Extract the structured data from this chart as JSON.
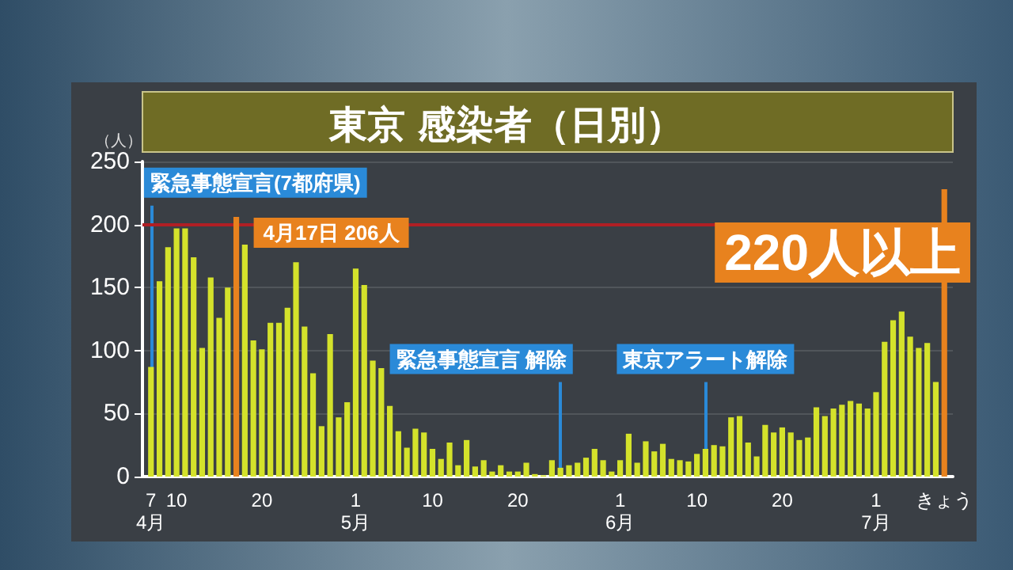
{
  "chart_data": {
    "type": "bar",
    "title": "東京 感染者（日別）",
    "ylabel": "（人）",
    "x": [
      "--04-07",
      "--04-08",
      "--04-09",
      "--04-10",
      "--04-11",
      "--04-12",
      "--04-13",
      "--04-14",
      "--04-15",
      "--04-16",
      "--04-17",
      "--04-18",
      "--04-19",
      "--04-20",
      "--04-21",
      "--04-22",
      "--04-23",
      "--04-24",
      "--04-25",
      "--04-26",
      "--04-27",
      "--04-28",
      "--04-29",
      "--04-30",
      "--05-01",
      "--05-02",
      "--05-03",
      "--05-04",
      "--05-05",
      "--05-06",
      "--05-07",
      "--05-08",
      "--05-09",
      "--05-10",
      "--05-11",
      "--05-12",
      "--05-13",
      "--05-14",
      "--05-15",
      "--05-16",
      "--05-17",
      "--05-18",
      "--05-19",
      "--05-20",
      "--05-21",
      "--05-22",
      "--05-23",
      "--05-24",
      "--05-25",
      "--05-26",
      "--05-27",
      "--05-28",
      "--05-29",
      "--05-30",
      "--05-31",
      "--06-01",
      "--06-02",
      "--06-03",
      "--06-04",
      "--06-05",
      "--06-06",
      "--06-07",
      "--06-08",
      "--06-09",
      "--06-10",
      "--06-11",
      "--06-12",
      "--06-13",
      "--06-14",
      "--06-15",
      "--06-16",
      "--06-17",
      "--06-18",
      "--06-19",
      "--06-20",
      "--06-21",
      "--06-22",
      "--06-23",
      "--06-24",
      "--06-25",
      "--06-26",
      "--06-27",
      "--06-28",
      "--06-29",
      "--06-30",
      "--07-01",
      "--07-02",
      "--07-03",
      "--07-04",
      "--07-05",
      "--07-06",
      "--07-07",
      "--07-08",
      "--07-09"
    ],
    "values": [
      87,
      155,
      182,
      197,
      197,
      174,
      102,
      158,
      126,
      150,
      206,
      184,
      108,
      101,
      122,
      122,
      134,
      170,
      119,
      82,
      40,
      113,
      47,
      59,
      165,
      152,
      92,
      86,
      56,
      36,
      23,
      38,
      35,
      22,
      14,
      27,
      9,
      29,
      8,
      13,
      4,
      9,
      4,
      4,
      11,
      2,
      1,
      13,
      7,
      9,
      11,
      15,
      22,
      13,
      4,
      13,
      34,
      11,
      28,
      20,
      26,
      14,
      13,
      12,
      18,
      22,
      25,
      24,
      47,
      48,
      27,
      16,
      41,
      35,
      39,
      35,
      29,
      31,
      55,
      48,
      54,
      57,
      60,
      58,
      54,
      67,
      107,
      124,
      131,
      111,
      102,
      106,
      75,
      228
    ],
    "colors": [
      "#d4e22b",
      "#d4e22b",
      "#d4e22b",
      "#d4e22b",
      "#d4e22b",
      "#d4e22b",
      "#d4e22b",
      "#d4e22b",
      "#d4e22b",
      "#d4e22b",
      "#e8821e",
      "#d4e22b",
      "#d4e22b",
      "#d4e22b",
      "#d4e22b",
      "#d4e22b",
      "#d4e22b",
      "#d4e22b",
      "#d4e22b",
      "#d4e22b",
      "#d4e22b",
      "#d4e22b",
      "#d4e22b",
      "#d4e22b",
      "#d4e22b",
      "#d4e22b",
      "#d4e22b",
      "#d4e22b",
      "#d4e22b",
      "#d4e22b",
      "#d4e22b",
      "#d4e22b",
      "#d4e22b",
      "#d4e22b",
      "#d4e22b",
      "#d4e22b",
      "#d4e22b",
      "#d4e22b",
      "#d4e22b",
      "#d4e22b",
      "#d4e22b",
      "#d4e22b",
      "#d4e22b",
      "#d4e22b",
      "#d4e22b",
      "#d4e22b",
      "#d4e22b",
      "#d4e22b",
      "#d4e22b",
      "#d4e22b",
      "#d4e22b",
      "#d4e22b",
      "#d4e22b",
      "#d4e22b",
      "#d4e22b",
      "#d4e22b",
      "#d4e22b",
      "#d4e22b",
      "#d4e22b",
      "#d4e22b",
      "#d4e22b",
      "#d4e22b",
      "#d4e22b",
      "#d4e22b",
      "#d4e22b",
      "#d4e22b",
      "#d4e22b",
      "#d4e22b",
      "#d4e22b",
      "#d4e22b",
      "#d4e22b",
      "#d4e22b",
      "#d4e22b",
      "#d4e22b",
      "#d4e22b",
      "#d4e22b",
      "#d4e22b",
      "#d4e22b",
      "#d4e22b",
      "#d4e22b",
      "#d4e22b",
      "#d4e22b",
      "#d4e22b",
      "#d4e22b",
      "#d4e22b",
      "#d4e22b",
      "#d4e22b",
      "#d4e22b",
      "#d4e22b",
      "#d4e22b",
      "#d4e22b",
      "#d4e22b",
      "#d4e22b",
      "#e8821e"
    ],
    "xlim": [
      "--04-06",
      "--07-10"
    ],
    "xticks": [
      {
        "value": "--04-07",
        "label": "7\n4月"
      },
      {
        "value": "--04-10",
        "label": "10"
      },
      {
        "value": "--04-20",
        "label": "20"
      },
      {
        "value": "--05-01",
        "label": "1\n5月"
      },
      {
        "value": "--05-10",
        "label": "10"
      },
      {
        "value": "--05-20",
        "label": "20"
      },
      {
        "value": "--06-01",
        "label": "1\n6月"
      },
      {
        "value": "--06-10",
        "label": "10"
      },
      {
        "value": "--06-20",
        "label": "20"
      },
      {
        "value": "--07-01",
        "label": "1\n7月"
      },
      {
        "value": "--07-09",
        "label": "きょう"
      }
    ],
    "ylim": [
      0,
      250
    ],
    "yticks": [
      0,
      50,
      100,
      150,
      200,
      250
    ],
    "grid": "y",
    "ref_lines": [
      {
        "axis": "x",
        "value": "--04-07",
        "label": "緊急事態宣言(7都府県)",
        "color": "#2a8ad8"
      },
      {
        "axis": "x",
        "value": "--05-25",
        "label": "緊急事態宣言 解除",
        "color": "#2a8ad8"
      },
      {
        "axis": "x",
        "value": "--06-11",
        "label": "東京アラート解除",
        "color": "#2a8ad8"
      },
      {
        "axis": "y",
        "value": 200,
        "color": "#b01f24"
      }
    ],
    "annotations": [
      {
        "text": "4月17日 206人",
        "x": "--04-17",
        "y": 206
      },
      {
        "text": "220人以上",
        "x": "--07-09",
        "y": 228
      }
    ]
  }
}
